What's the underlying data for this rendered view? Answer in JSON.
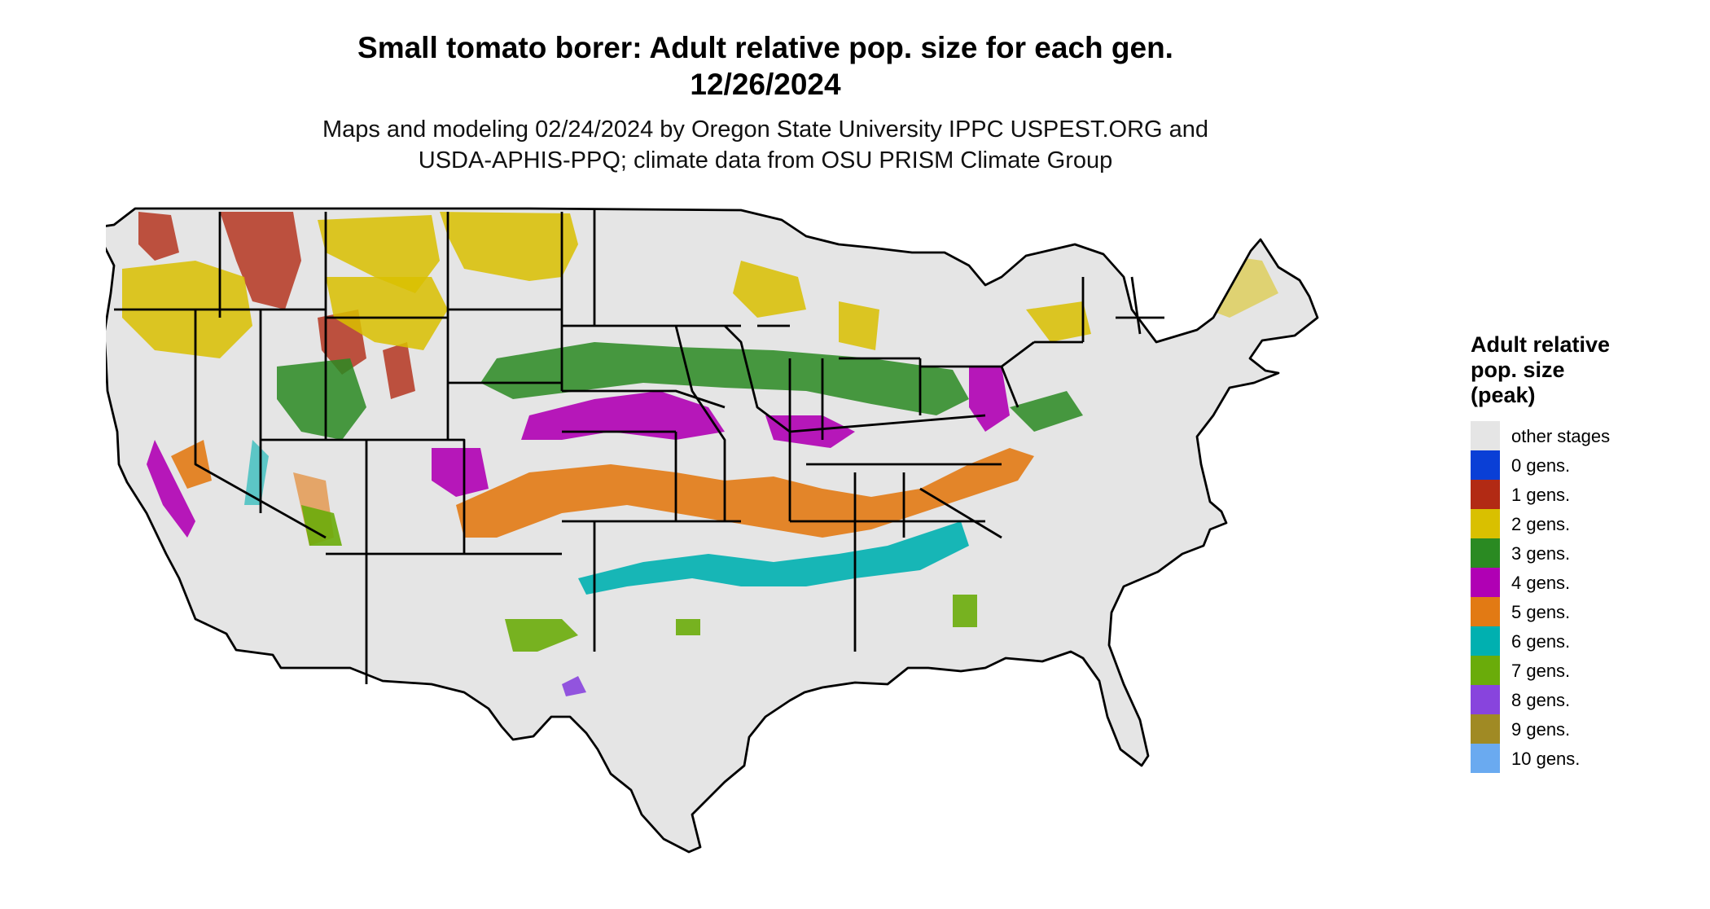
{
  "header": {
    "title_line1": "Small tomato borer: Adult relative pop. size for each gen.",
    "title_line2": "12/26/2024",
    "subtitle_line1": "Maps and modeling 02/24/2024 by Oregon State University IPPC USPEST.ORG and",
    "subtitle_line2": "USDA-APHIS-PPQ; climate data from OSU PRISM Climate Group"
  },
  "legend": {
    "title_line1": "Adult relative",
    "title_line2": "pop. size",
    "title_line3": "(peak)",
    "items": [
      {
        "label": "other stages",
        "color": "#e5e5e5"
      },
      {
        "label": "0 gens.",
        "color": "#0a3fd6"
      },
      {
        "label": "1 gens.",
        "color": "#b22a14"
      },
      {
        "label": "2 gens.",
        "color": "#d9c000"
      },
      {
        "label": "3 gens.",
        "color": "#2a8a22"
      },
      {
        "label": "4 gens.",
        "color": "#b000b4"
      },
      {
        "label": "5 gens.",
        "color": "#e27a14"
      },
      {
        "label": "6 gens.",
        "color": "#00b0b0"
      },
      {
        "label": "7 gens.",
        "color": "#6aac0a"
      },
      {
        "label": "8 gens.",
        "color": "#8844dd"
      },
      {
        "label": "9 gens.",
        "color": "#a08a24"
      },
      {
        "label": "10 gens.",
        "color": "#6aaaf0"
      }
    ]
  },
  "map": {
    "region": "contiguous-united-states",
    "background_color": "#e5e5e5",
    "border_color": "#000000"
  }
}
